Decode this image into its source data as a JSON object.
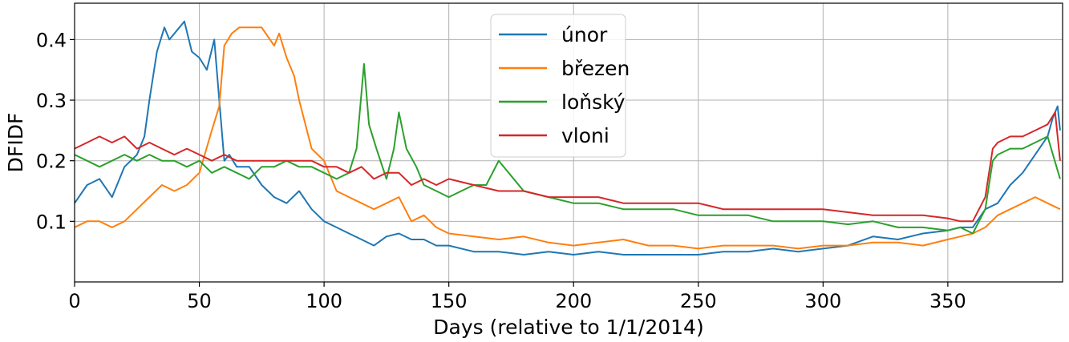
{
  "chart_data": {
    "type": "line",
    "xlabel": "Days (relative to 1/1/2014)",
    "ylabel": "DFIDF",
    "xlim": [
      0,
      396
    ],
    "ylim": [
      0,
      0.46
    ],
    "xticks": [
      0,
      50,
      100,
      150,
      200,
      250,
      300,
      350
    ],
    "yticks": [
      0.1,
      0.2,
      0.3,
      0.4
    ],
    "grid": true,
    "legend_position": "top-center",
    "series": [
      {
        "name": "únor",
        "color": "#1f77b4",
        "x": [
          0,
          5,
          10,
          15,
          20,
          25,
          28,
          30,
          33,
          36,
          38,
          42,
          44,
          47,
          50,
          53,
          56,
          58,
          60,
          62,
          65,
          70,
          75,
          80,
          85,
          90,
          95,
          100,
          105,
          110,
          115,
          120,
          125,
          130,
          135,
          140,
          145,
          150,
          160,
          170,
          180,
          190,
          200,
          210,
          220,
          230,
          240,
          250,
          260,
          270,
          280,
          290,
          300,
          310,
          320,
          330,
          340,
          350,
          355,
          360,
          365,
          370,
          375,
          380,
          385,
          390,
          392,
          394,
          395
        ],
        "y": [
          0.13,
          0.16,
          0.17,
          0.14,
          0.19,
          0.21,
          0.24,
          0.3,
          0.38,
          0.42,
          0.4,
          0.42,
          0.43,
          0.38,
          0.37,
          0.35,
          0.4,
          0.3,
          0.2,
          0.21,
          0.19,
          0.19,
          0.16,
          0.14,
          0.13,
          0.15,
          0.12,
          0.1,
          0.09,
          0.08,
          0.07,
          0.06,
          0.075,
          0.08,
          0.07,
          0.07,
          0.06,
          0.06,
          0.05,
          0.05,
          0.045,
          0.05,
          0.045,
          0.05,
          0.045,
          0.045,
          0.045,
          0.045,
          0.05,
          0.05,
          0.055,
          0.05,
          0.055,
          0.06,
          0.075,
          0.07,
          0.08,
          0.085,
          0.09,
          0.09,
          0.12,
          0.13,
          0.16,
          0.18,
          0.21,
          0.24,
          0.27,
          0.29,
          0.25
        ]
      },
      {
        "name": "březen",
        "color": "#ff7f0e",
        "x": [
          0,
          5,
          10,
          15,
          20,
          25,
          30,
          35,
          40,
          45,
          50,
          55,
          58,
          60,
          63,
          66,
          70,
          75,
          80,
          82,
          85,
          88,
          90,
          95,
          100,
          105,
          110,
          115,
          120,
          125,
          130,
          135,
          140,
          145,
          150,
          160,
          170,
          180,
          190,
          200,
          210,
          220,
          230,
          240,
          250,
          260,
          270,
          280,
          290,
          300,
          310,
          320,
          330,
          340,
          350,
          355,
          360,
          365,
          370,
          375,
          380,
          385,
          390,
          395
        ],
        "y": [
          0.09,
          0.1,
          0.1,
          0.09,
          0.1,
          0.12,
          0.14,
          0.16,
          0.15,
          0.16,
          0.18,
          0.25,
          0.29,
          0.39,
          0.41,
          0.42,
          0.42,
          0.42,
          0.39,
          0.41,
          0.37,
          0.34,
          0.3,
          0.22,
          0.2,
          0.15,
          0.14,
          0.13,
          0.12,
          0.13,
          0.14,
          0.1,
          0.11,
          0.09,
          0.08,
          0.075,
          0.07,
          0.075,
          0.065,
          0.06,
          0.065,
          0.07,
          0.06,
          0.06,
          0.055,
          0.06,
          0.06,
          0.06,
          0.055,
          0.06,
          0.06,
          0.065,
          0.065,
          0.06,
          0.07,
          0.075,
          0.08,
          0.09,
          0.11,
          0.12,
          0.13,
          0.14,
          0.13,
          0.12
        ]
      },
      {
        "name": "loňský",
        "color": "#2ca02c",
        "x": [
          0,
          5,
          10,
          15,
          20,
          25,
          30,
          35,
          40,
          45,
          50,
          55,
          60,
          65,
          70,
          75,
          80,
          85,
          90,
          95,
          100,
          105,
          110,
          113,
          116,
          118,
          121,
          125,
          128,
          130,
          133,
          137,
          140,
          145,
          150,
          155,
          160,
          165,
          170,
          180,
          190,
          200,
          210,
          220,
          230,
          240,
          250,
          260,
          270,
          280,
          290,
          300,
          310,
          320,
          330,
          340,
          350,
          355,
          360,
          365,
          368,
          370,
          375,
          380,
          385,
          390,
          395
        ],
        "y": [
          0.21,
          0.2,
          0.19,
          0.2,
          0.21,
          0.2,
          0.21,
          0.2,
          0.2,
          0.19,
          0.2,
          0.18,
          0.19,
          0.18,
          0.17,
          0.19,
          0.19,
          0.2,
          0.19,
          0.19,
          0.18,
          0.17,
          0.18,
          0.22,
          0.36,
          0.26,
          0.22,
          0.17,
          0.22,
          0.28,
          0.22,
          0.19,
          0.16,
          0.15,
          0.14,
          0.15,
          0.16,
          0.16,
          0.2,
          0.15,
          0.14,
          0.13,
          0.13,
          0.12,
          0.12,
          0.12,
          0.11,
          0.11,
          0.11,
          0.1,
          0.1,
          0.1,
          0.095,
          0.1,
          0.09,
          0.09,
          0.085,
          0.09,
          0.08,
          0.12,
          0.2,
          0.21,
          0.22,
          0.22,
          0.23,
          0.24,
          0.17
        ]
      },
      {
        "name": "vloni",
        "color": "#d62728",
        "x": [
          0,
          5,
          10,
          15,
          20,
          25,
          30,
          35,
          40,
          45,
          50,
          55,
          60,
          65,
          70,
          75,
          80,
          85,
          90,
          95,
          100,
          105,
          110,
          115,
          120,
          125,
          130,
          135,
          140,
          145,
          150,
          160,
          170,
          180,
          190,
          200,
          210,
          220,
          230,
          240,
          250,
          260,
          270,
          280,
          290,
          300,
          310,
          320,
          330,
          340,
          350,
          355,
          360,
          365,
          368,
          370,
          375,
          380,
          385,
          390,
          393,
          395
        ],
        "y": [
          0.22,
          0.23,
          0.24,
          0.23,
          0.24,
          0.22,
          0.23,
          0.22,
          0.21,
          0.22,
          0.21,
          0.2,
          0.21,
          0.2,
          0.2,
          0.2,
          0.2,
          0.2,
          0.2,
          0.2,
          0.19,
          0.19,
          0.18,
          0.19,
          0.17,
          0.18,
          0.18,
          0.16,
          0.17,
          0.16,
          0.17,
          0.16,
          0.15,
          0.15,
          0.14,
          0.14,
          0.14,
          0.13,
          0.13,
          0.13,
          0.13,
          0.12,
          0.12,
          0.12,
          0.12,
          0.12,
          0.115,
          0.11,
          0.11,
          0.11,
          0.105,
          0.1,
          0.1,
          0.14,
          0.22,
          0.23,
          0.24,
          0.24,
          0.25,
          0.26,
          0.28,
          0.2
        ]
      }
    ]
  }
}
